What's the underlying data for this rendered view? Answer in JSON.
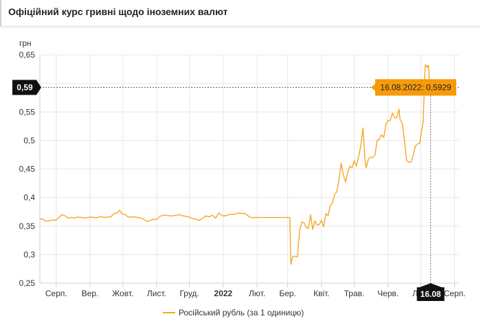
{
  "header": {
    "title": "Офіційний курс гривні щодо іноземних валют"
  },
  "colors": {
    "series": "#f5a623",
    "tooltip_bg": "#f59b0a",
    "badge_bg": "#111111",
    "grid": "#e6e6e6"
  },
  "chart_data": {
    "type": "line",
    "title": "",
    "ylabel": "грн",
    "ylim": [
      0.25,
      0.65
    ],
    "yticks": [
      {
        "v": 0.65,
        "label": "0,65"
      },
      {
        "v": 0.6,
        "label": ""
      },
      {
        "v": 0.55,
        "label": "0,55"
      },
      {
        "v": 0.5,
        "label": "0,5"
      },
      {
        "v": 0.45,
        "label": "0,45"
      },
      {
        "v": 0.4,
        "label": "0,4"
      },
      {
        "v": 0.35,
        "label": "0,35"
      },
      {
        "v": 0.3,
        "label": "0,3"
      },
      {
        "v": 0.25,
        "label": "0,25"
      }
    ],
    "xlim": [
      0,
      384
    ],
    "xticks": [
      {
        "d": 15,
        "label": "Серп.",
        "bold": false
      },
      {
        "d": 46,
        "label": "Вер.",
        "bold": false
      },
      {
        "d": 76,
        "label": "Жовт.",
        "bold": false
      },
      {
        "d": 107,
        "label": "Лист.",
        "bold": false
      },
      {
        "d": 137,
        "label": "Груд.",
        "bold": false
      },
      {
        "d": 168,
        "label": "2022",
        "bold": true
      },
      {
        "d": 199,
        "label": "Лют.",
        "bold": false
      },
      {
        "d": 227,
        "label": "Бер.",
        "bold": false
      },
      {
        "d": 258,
        "label": "Квіт.",
        "bold": false
      },
      {
        "d": 288,
        "label": "Трав.",
        "bold": false
      },
      {
        "d": 319,
        "label": "Черв.",
        "bold": false
      },
      {
        "d": 349,
        "label": "Лип.",
        "bold": false
      },
      {
        "d": 380,
        "label": "Серп.",
        "bold": false
      }
    ],
    "series": [
      {
        "name": "Російський рубль (за 1 одиницю)",
        "points": [
          [
            0,
            0.363
          ],
          [
            3,
            0.362
          ],
          [
            5,
            0.359
          ],
          [
            8,
            0.359
          ],
          [
            10,
            0.36
          ],
          [
            12,
            0.361
          ],
          [
            14,
            0.36
          ],
          [
            17,
            0.364
          ],
          [
            20,
            0.37
          ],
          [
            23,
            0.368
          ],
          [
            26,
            0.364
          ],
          [
            29,
            0.365
          ],
          [
            32,
            0.364
          ],
          [
            35,
            0.366
          ],
          [
            38,
            0.365
          ],
          [
            41,
            0.364
          ],
          [
            44,
            0.365
          ],
          [
            47,
            0.366
          ],
          [
            50,
            0.365
          ],
          [
            53,
            0.365
          ],
          [
            56,
            0.367
          ],
          [
            59,
            0.365
          ],
          [
            62,
            0.366
          ],
          [
            65,
            0.366
          ],
          [
            68,
            0.372
          ],
          [
            71,
            0.373
          ],
          [
            73,
            0.378
          ],
          [
            75,
            0.372
          ],
          [
            78,
            0.37
          ],
          [
            81,
            0.366
          ],
          [
            84,
            0.366
          ],
          [
            87,
            0.366
          ],
          [
            90,
            0.365
          ],
          [
            93,
            0.364
          ],
          [
            96,
            0.361
          ],
          [
            98,
            0.358
          ],
          [
            101,
            0.36
          ],
          [
            104,
            0.362
          ],
          [
            107,
            0.362
          ],
          [
            110,
            0.367
          ],
          [
            113,
            0.369
          ],
          [
            116,
            0.369
          ],
          [
            119,
            0.368
          ],
          [
            122,
            0.368
          ],
          [
            125,
            0.369
          ],
          [
            128,
            0.37
          ],
          [
            131,
            0.368
          ],
          [
            134,
            0.367
          ],
          [
            137,
            0.366
          ],
          [
            140,
            0.363
          ],
          [
            143,
            0.362
          ],
          [
            146,
            0.36
          ],
          [
            149,
            0.363
          ],
          [
            152,
            0.368
          ],
          [
            155,
            0.366
          ],
          [
            158,
            0.369
          ],
          [
            161,
            0.364
          ],
          [
            164,
            0.373
          ],
          [
            167,
            0.368
          ],
          [
            170,
            0.368
          ],
          [
            173,
            0.37
          ],
          [
            176,
            0.371
          ],
          [
            179,
            0.371
          ],
          [
            182,
            0.373
          ],
          [
            185,
            0.372
          ],
          [
            188,
            0.372
          ],
          [
            190,
            0.369
          ],
          [
            193,
            0.365
          ],
          [
            196,
            0.365
          ],
          [
            200,
            0.365
          ],
          [
            205,
            0.365
          ],
          [
            210,
            0.365
          ],
          [
            215,
            0.365
          ],
          [
            220,
            0.365
          ],
          [
            225,
            0.365
          ],
          [
            229,
            0.365
          ],
          [
            230,
            0.283
          ],
          [
            231,
            0.293
          ],
          [
            232,
            0.297
          ],
          [
            234,
            0.297
          ],
          [
            236,
            0.296
          ],
          [
            238,
            0.343
          ],
          [
            240,
            0.357
          ],
          [
            242,
            0.356
          ],
          [
            244,
            0.348
          ],
          [
            246,
            0.346
          ],
          [
            248,
            0.37
          ],
          [
            250,
            0.344
          ],
          [
            252,
            0.359
          ],
          [
            254,
            0.352
          ],
          [
            256,
            0.353
          ],
          [
            258,
            0.36
          ],
          [
            260,
            0.349
          ],
          [
            262,
            0.372
          ],
          [
            264,
            0.368
          ],
          [
            266,
            0.386
          ],
          [
            268,
            0.39
          ],
          [
            270,
            0.405
          ],
          [
            272,
            0.41
          ],
          [
            274,
            0.43
          ],
          [
            276,
            0.46
          ],
          [
            278,
            0.44
          ],
          [
            280,
            0.427
          ],
          [
            282,
            0.444
          ],
          [
            284,
            0.455
          ],
          [
            286,
            0.452
          ],
          [
            288,
            0.465
          ],
          [
            290,
            0.455
          ],
          [
            292,
            0.472
          ],
          [
            294,
            0.49
          ],
          [
            296,
            0.522
          ],
          [
            298,
            0.462
          ],
          [
            299,
            0.452
          ],
          [
            301,
            0.468
          ],
          [
            303,
            0.471
          ],
          [
            305,
            0.47
          ],
          [
            307,
            0.475
          ],
          [
            309,
            0.5
          ],
          [
            311,
            0.502
          ],
          [
            313,
            0.51
          ],
          [
            315,
            0.505
          ],
          [
            317,
            0.528
          ],
          [
            319,
            0.535
          ],
          [
            321,
            0.535
          ],
          [
            323,
            0.548
          ],
          [
            325,
            0.54
          ],
          [
            327,
            0.54
          ],
          [
            329,
            0.555
          ],
          [
            330,
            0.537
          ],
          [
            332,
            0.53
          ],
          [
            334,
            0.5
          ],
          [
            336,
            0.465
          ],
          [
            338,
            0.462
          ],
          [
            340,
            0.462
          ],
          [
            342,
            0.473
          ],
          [
            344,
            0.49
          ],
          [
            346,
            0.494
          ],
          [
            348,
            0.495
          ],
          [
            350,
            0.52
          ],
          [
            351,
            0.53
          ],
          [
            352,
            0.58
          ],
          [
            353,
            0.632
          ],
          [
            354,
            0.632
          ],
          [
            355,
            0.628
          ],
          [
            356,
            0.632
          ],
          [
            357,
            0.6
          ],
          [
            358,
            0.593
          ]
        ]
      }
    ],
    "crosshair": {
      "value": 0.5929,
      "badge_label": "0,59",
      "tooltip": "16.08.2022: 0,5929"
    },
    "x_badge": {
      "d": 358,
      "label": "16.08"
    },
    "grid": true,
    "legend": "bottom"
  }
}
